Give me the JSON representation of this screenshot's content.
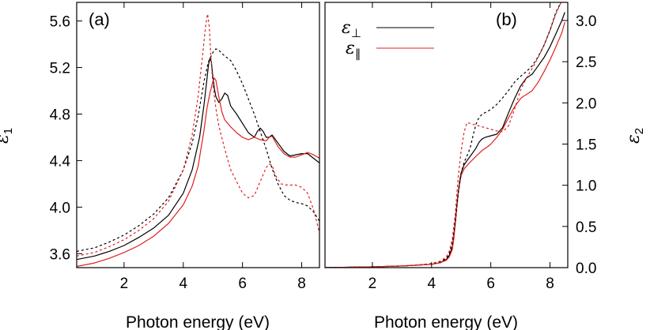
{
  "chart_data": [
    {
      "type": "line",
      "panel_label": "(a)",
      "xlabel": "Photon energy (eV)",
      "ylabel_symbol": "ε",
      "ylabel_subscript": "1",
      "xlim": [
        0.4,
        8.6
      ],
      "ylim": [
        3.48,
        5.76
      ],
      "xticks": [
        2,
        4,
        6,
        8
      ],
      "xtick_labels": [
        "2",
        "4",
        "6",
        "8"
      ],
      "yticks": [
        3.6,
        4.0,
        4.4,
        4.8,
        5.2,
        5.6
      ],
      "ytick_labels": [
        "3.6",
        "4.0",
        "4.4",
        "4.8",
        "5.2",
        "5.6"
      ],
      "grid": false,
      "series": [
        {
          "color": "#000000",
          "dash": "solid",
          "x": [
            0.4,
            1.0,
            1.5,
            2.0,
            2.5,
            3.0,
            3.5,
            4.0,
            4.3,
            4.55,
            4.7,
            4.8,
            4.85,
            4.9,
            4.95,
            5.0,
            5.05,
            5.1,
            5.2,
            5.3,
            5.4,
            5.5,
            5.6,
            5.8,
            6.0,
            6.2,
            6.4,
            6.5,
            6.6,
            6.7,
            6.8,
            6.9,
            7.0,
            7.2,
            7.4,
            7.6,
            7.8,
            8.0,
            8.2,
            8.4,
            8.6
          ],
          "y": [
            3.55,
            3.58,
            3.62,
            3.67,
            3.74,
            3.82,
            3.93,
            4.12,
            4.32,
            4.6,
            4.88,
            5.1,
            5.22,
            5.28,
            5.25,
            5.12,
            5.02,
            4.95,
            4.9,
            4.93,
            4.98,
            4.96,
            4.87,
            4.8,
            4.72,
            4.64,
            4.6,
            4.65,
            4.68,
            4.65,
            4.6,
            4.6,
            4.62,
            4.55,
            4.48,
            4.44,
            4.45,
            4.46,
            4.46,
            4.42,
            4.38
          ]
        },
        {
          "color": "#e02020",
          "dash": "solid",
          "x": [
            0.4,
            1.0,
            1.5,
            2.0,
            2.5,
            3.0,
            3.5,
            4.0,
            4.3,
            4.5,
            4.7,
            4.8,
            4.9,
            5.0,
            5.05,
            5.1,
            5.2,
            5.3,
            5.4,
            5.6,
            5.8,
            6.0,
            6.2,
            6.4,
            6.6,
            6.8,
            6.9,
            7.0,
            7.2,
            7.4,
            7.6,
            7.8,
            8.0,
            8.2,
            8.4,
            8.6
          ],
          "y": [
            3.49,
            3.52,
            3.56,
            3.61,
            3.67,
            3.75,
            3.86,
            4.02,
            4.18,
            4.35,
            4.66,
            4.85,
            4.98,
            5.08,
            5.11,
            5.09,
            4.95,
            4.82,
            4.75,
            4.69,
            4.64,
            4.6,
            4.58,
            4.6,
            4.58,
            4.57,
            4.6,
            4.61,
            4.52,
            4.46,
            4.43,
            4.43,
            4.45,
            4.47,
            4.45,
            4.42
          ]
        },
        {
          "color": "#000000",
          "dash": "dashed",
          "x": [
            0.4,
            1.0,
            1.5,
            2.0,
            2.5,
            3.0,
            3.5,
            4.0,
            4.3,
            4.5,
            4.7,
            4.85,
            5.0,
            5.1,
            5.2,
            5.3,
            5.4,
            5.5,
            5.6,
            5.8,
            6.0,
            6.2,
            6.4,
            6.6,
            6.8,
            7.0,
            7.2,
            7.4,
            7.6,
            7.8,
            8.0,
            8.2,
            8.4,
            8.6
          ],
          "y": [
            3.62,
            3.65,
            3.7,
            3.76,
            3.84,
            3.94,
            4.08,
            4.32,
            4.55,
            4.78,
            5.08,
            5.25,
            5.33,
            5.36,
            5.35,
            5.32,
            5.3,
            5.28,
            5.26,
            5.17,
            5.06,
            4.93,
            4.8,
            4.65,
            4.5,
            4.33,
            4.2,
            4.1,
            4.06,
            4.04,
            4.03,
            4.01,
            3.96,
            3.88
          ]
        },
        {
          "color": "#e02020",
          "dash": "dashed",
          "x": [
            0.4,
            1.0,
            1.5,
            2.0,
            2.5,
            3.0,
            3.5,
            4.0,
            4.3,
            4.5,
            4.65,
            4.75,
            4.82,
            4.88,
            4.93,
            5.0,
            5.1,
            5.2,
            5.4,
            5.6,
            5.8,
            6.0,
            6.2,
            6.4,
            6.6,
            6.8,
            6.9,
            7.0,
            7.1,
            7.3,
            7.5,
            7.8,
            8.0,
            8.2,
            8.4,
            8.6
          ],
          "y": [
            3.58,
            3.61,
            3.66,
            3.72,
            3.8,
            3.9,
            4.05,
            4.32,
            4.62,
            4.95,
            5.3,
            5.55,
            5.66,
            5.55,
            5.3,
            5.06,
            4.85,
            4.7,
            4.5,
            4.32,
            4.22,
            4.12,
            4.08,
            4.1,
            4.22,
            4.34,
            4.37,
            4.36,
            4.28,
            4.2,
            4.19,
            4.19,
            4.17,
            4.12,
            3.98,
            3.78
          ]
        }
      ]
    },
    {
      "type": "line",
      "panel_label": "(b)",
      "xlabel": "Photon energy (eV)",
      "ylabel_symbol": "ε",
      "ylabel_subscript": "2",
      "xlim": [
        0.4,
        8.6
      ],
      "ylim": [
        0.0,
        3.22
      ],
      "xticks": [
        2,
        4,
        6,
        8
      ],
      "xtick_labels": [
        "2",
        "4",
        "6",
        "8"
      ],
      "yticks": [
        0.0,
        0.5,
        1.0,
        1.5,
        2.0,
        2.5,
        3.0
      ],
      "ytick_labels": [
        "0.0",
        "0.5",
        "1.0",
        "1.5",
        "2.0",
        "2.5",
        "3.0"
      ],
      "grid": false,
      "legend": {
        "placement": "top-left",
        "entries": [
          {
            "symbol": "ε",
            "subscript": "⊥",
            "color": "#000000"
          },
          {
            "symbol": "ε",
            "subscript": "∥",
            "color": "#e02020"
          }
        ]
      },
      "series": [
        {
          "color": "#000000",
          "dash": "solid",
          "x": [
            0.4,
            2.0,
            3.0,
            3.5,
            4.0,
            4.3,
            4.5,
            4.6,
            4.7,
            4.75,
            4.8,
            4.85,
            4.9,
            4.95,
            5.0,
            5.1,
            5.2,
            5.3,
            5.5,
            5.6,
            5.7,
            5.8,
            6.0,
            6.2,
            6.4,
            6.6,
            6.8,
            7.0,
            7.1,
            7.2,
            7.4,
            7.6,
            7.8,
            8.0,
            8.2,
            8.4,
            8.5
          ],
          "y": [
            0.0,
            0.01,
            0.02,
            0.03,
            0.04,
            0.06,
            0.1,
            0.15,
            0.25,
            0.38,
            0.55,
            0.75,
            0.92,
            1.05,
            1.15,
            1.25,
            1.3,
            1.35,
            1.45,
            1.52,
            1.56,
            1.58,
            1.6,
            1.62,
            1.7,
            1.88,
            2.05,
            2.2,
            2.25,
            2.3,
            2.35,
            2.45,
            2.55,
            2.68,
            2.84,
            3.0,
            3.1
          ]
        },
        {
          "color": "#e02020",
          "dash": "solid",
          "x": [
            0.4,
            2.0,
            3.0,
            3.5,
            4.0,
            4.3,
            4.5,
            4.6,
            4.7,
            4.75,
            4.8,
            4.85,
            4.9,
            4.95,
            5.0,
            5.1,
            5.2,
            5.3,
            5.5,
            5.7,
            5.9,
            6.0,
            6.2,
            6.4,
            6.6,
            6.8,
            7.0,
            7.1,
            7.2,
            7.4,
            7.6,
            7.8,
            8.0,
            8.2,
            8.4,
            8.5
          ],
          "y": [
            0.0,
            0.01,
            0.02,
            0.03,
            0.04,
            0.06,
            0.09,
            0.13,
            0.22,
            0.35,
            0.52,
            0.72,
            0.9,
            1.02,
            1.12,
            1.2,
            1.24,
            1.28,
            1.35,
            1.42,
            1.47,
            1.5,
            1.58,
            1.68,
            1.82,
            1.95,
            2.05,
            2.08,
            2.1,
            2.15,
            2.25,
            2.38,
            2.52,
            2.68,
            2.85,
            2.98
          ]
        },
        {
          "color": "#000000",
          "dash": "dashed",
          "x": [
            0.4,
            2.0,
            3.0,
            3.5,
            4.0,
            4.3,
            4.5,
            4.6,
            4.7,
            4.8,
            4.85,
            4.9,
            5.0,
            5.1,
            5.2,
            5.3,
            5.4,
            5.5,
            5.6,
            5.7,
            5.8,
            6.0,
            6.2,
            6.4,
            6.6,
            6.8,
            7.0,
            7.2,
            7.4,
            7.6,
            7.8,
            8.0,
            8.2,
            8.4,
            8.5
          ],
          "y": [
            0.0,
            0.01,
            0.02,
            0.03,
            0.05,
            0.07,
            0.11,
            0.17,
            0.3,
            0.55,
            0.72,
            0.9,
            1.15,
            1.28,
            1.36,
            1.45,
            1.6,
            1.74,
            1.82,
            1.86,
            1.88,
            1.92,
            1.98,
            2.06,
            2.15,
            2.25,
            2.32,
            2.38,
            2.45,
            2.56,
            2.7,
            2.88,
            3.1,
            3.24,
            3.3
          ]
        },
        {
          "color": "#e02020",
          "dash": "dashed",
          "x": [
            0.4,
            2.0,
            3.0,
            3.5,
            4.0,
            4.3,
            4.5,
            4.6,
            4.7,
            4.8,
            4.85,
            4.9,
            5.0,
            5.1,
            5.2,
            5.4,
            5.6,
            5.8,
            6.0,
            6.2,
            6.4,
            6.6,
            6.8,
            7.0,
            7.2,
            7.4,
            7.6,
            7.8,
            8.0,
            8.2,
            8.4
          ],
          "y": [
            0.0,
            0.01,
            0.02,
            0.03,
            0.05,
            0.08,
            0.13,
            0.2,
            0.35,
            0.65,
            0.88,
            1.1,
            1.42,
            1.65,
            1.76,
            1.74,
            1.72,
            1.7,
            1.68,
            1.66,
            1.65,
            1.72,
            1.92,
            2.15,
            2.3,
            2.42,
            2.55,
            2.7,
            2.88,
            3.08,
            3.24
          ]
        }
      ]
    }
  ]
}
